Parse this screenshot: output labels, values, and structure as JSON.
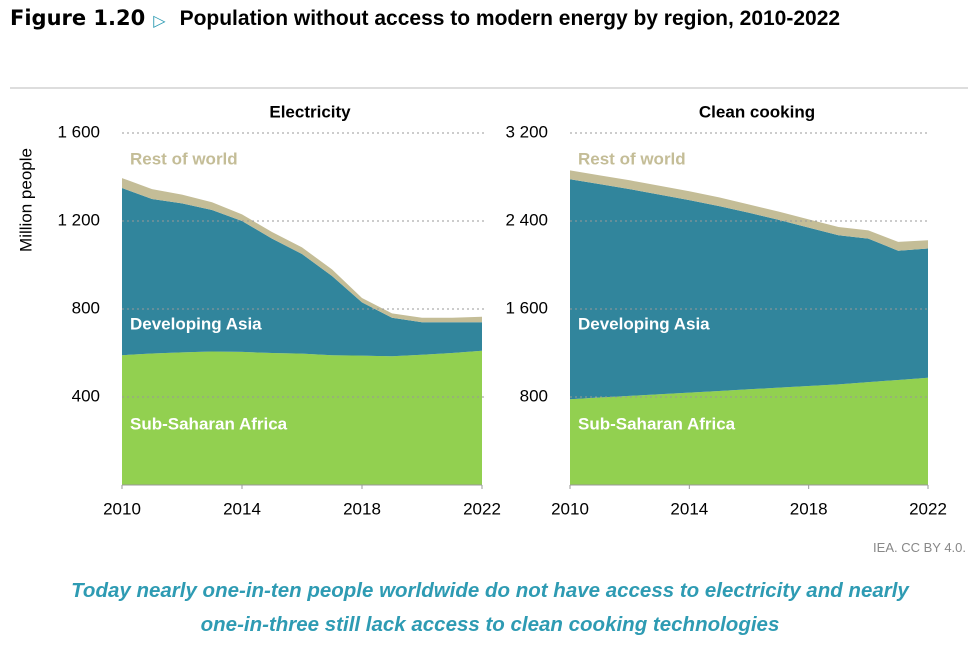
{
  "figure_label": "Figure 1.20",
  "title": "Population without access to modern energy by region, 2010-2022",
  "source": "IEA. CC BY 4.0.",
  "caption": "Today nearly one-in-ten people worldwide do not have access to electricity and nearly one-in-three still lack access to clean cooking technologies",
  "chart_data": [
    {
      "type": "stacked_area",
      "title": "Electricity",
      "y_label": "Million people",
      "x": [
        2010,
        2011,
        2012,
        2013,
        2014,
        2015,
        2016,
        2017,
        2018,
        2019,
        2020,
        2021,
        2022
      ],
      "xlim": [
        2010,
        2022
      ],
      "xticks": [
        2010,
        2014,
        2018,
        2022
      ],
      "ylim": [
        0,
        1600
      ],
      "yticks": [
        400,
        800,
        {
          "value": 1200,
          "label": "1 200"
        },
        {
          "value": 1600,
          "label": "1 600"
        }
      ],
      "grid": true,
      "series": [
        {
          "name": "Sub-Saharan Africa",
          "color": "#92d050",
          "values": [
            590,
            598,
            603,
            607,
            605,
            600,
            597,
            590,
            588,
            585,
            592,
            600,
            610
          ]
        },
        {
          "name": "Developing Asia",
          "color": "#31859c",
          "values": [
            760,
            702,
            677,
            643,
            595,
            520,
            453,
            360,
            242,
            175,
            148,
            140,
            130
          ]
        },
        {
          "name": "Rest of world",
          "color": "#c4bd97",
          "values": [
            45,
            45,
            40,
            35,
            30,
            30,
            30,
            30,
            20,
            20,
            20,
            20,
            25
          ]
        }
      ]
    },
    {
      "type": "stacked_area",
      "title": "Clean cooking",
      "x": [
        2010,
        2011,
        2012,
        2013,
        2014,
        2015,
        2016,
        2017,
        2018,
        2019,
        2020,
        2021,
        2022
      ],
      "xlim": [
        2010,
        2022
      ],
      "xticks": [
        2010,
        2014,
        2018,
        2022
      ],
      "ylim": [
        0,
        3200
      ],
      "yticks": [
        800,
        {
          "value": 1600,
          "label": "1 600"
        },
        {
          "value": 2400,
          "label": "2 400"
        },
        {
          "value": 3200,
          "label": "3 200"
        }
      ],
      "grid": true,
      "series": [
        {
          "name": "Sub-Saharan Africa",
          "color": "#92d050",
          "values": [
            780,
            795,
            810,
            825,
            840,
            855,
            870,
            885,
            900,
            915,
            935,
            955,
            975
          ]
        },
        {
          "name": "Developing Asia",
          "color": "#31859c",
          "values": [
            2000,
            1940,
            1880,
            1815,
            1750,
            1680,
            1605,
            1525,
            1440,
            1355,
            1305,
            1175,
            1175
          ]
        },
        {
          "name": "Rest of world",
          "color": "#c4bd97",
          "values": [
            80,
            80,
            80,
            80,
            80,
            80,
            75,
            75,
            75,
            75,
            75,
            80,
            75
          ]
        }
      ]
    }
  ]
}
